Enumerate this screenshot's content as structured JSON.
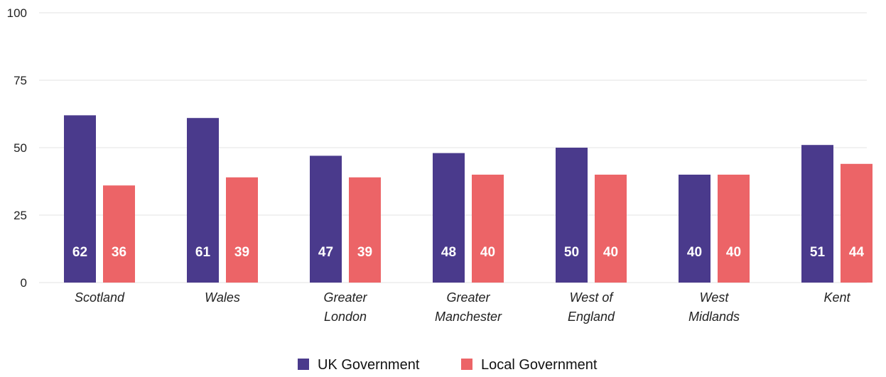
{
  "chart_data": {
    "type": "bar",
    "categories": [
      [
        "Scotland"
      ],
      [
        "Wales"
      ],
      [
        "Greater",
        "London"
      ],
      [
        "Greater",
        "Manchester"
      ],
      [
        "West of",
        "England"
      ],
      [
        "West",
        "Midlands"
      ],
      [
        "Kent"
      ]
    ],
    "series": [
      {
        "name": "UK Government",
        "color": "#4a3a8c",
        "values": [
          62,
          61,
          47,
          48,
          50,
          40,
          51
        ]
      },
      {
        "name": "Local Government",
        "color": "#ec6467",
        "values": [
          36,
          39,
          39,
          40,
          40,
          40,
          44
        ]
      }
    ],
    "yticks": [
      "0",
      "25",
      "50",
      "75",
      "100"
    ],
    "ylim": [
      0,
      100
    ],
    "grid": true,
    "legend_position": "bottom-center",
    "title": "",
    "xlabel": "",
    "ylabel": ""
  }
}
